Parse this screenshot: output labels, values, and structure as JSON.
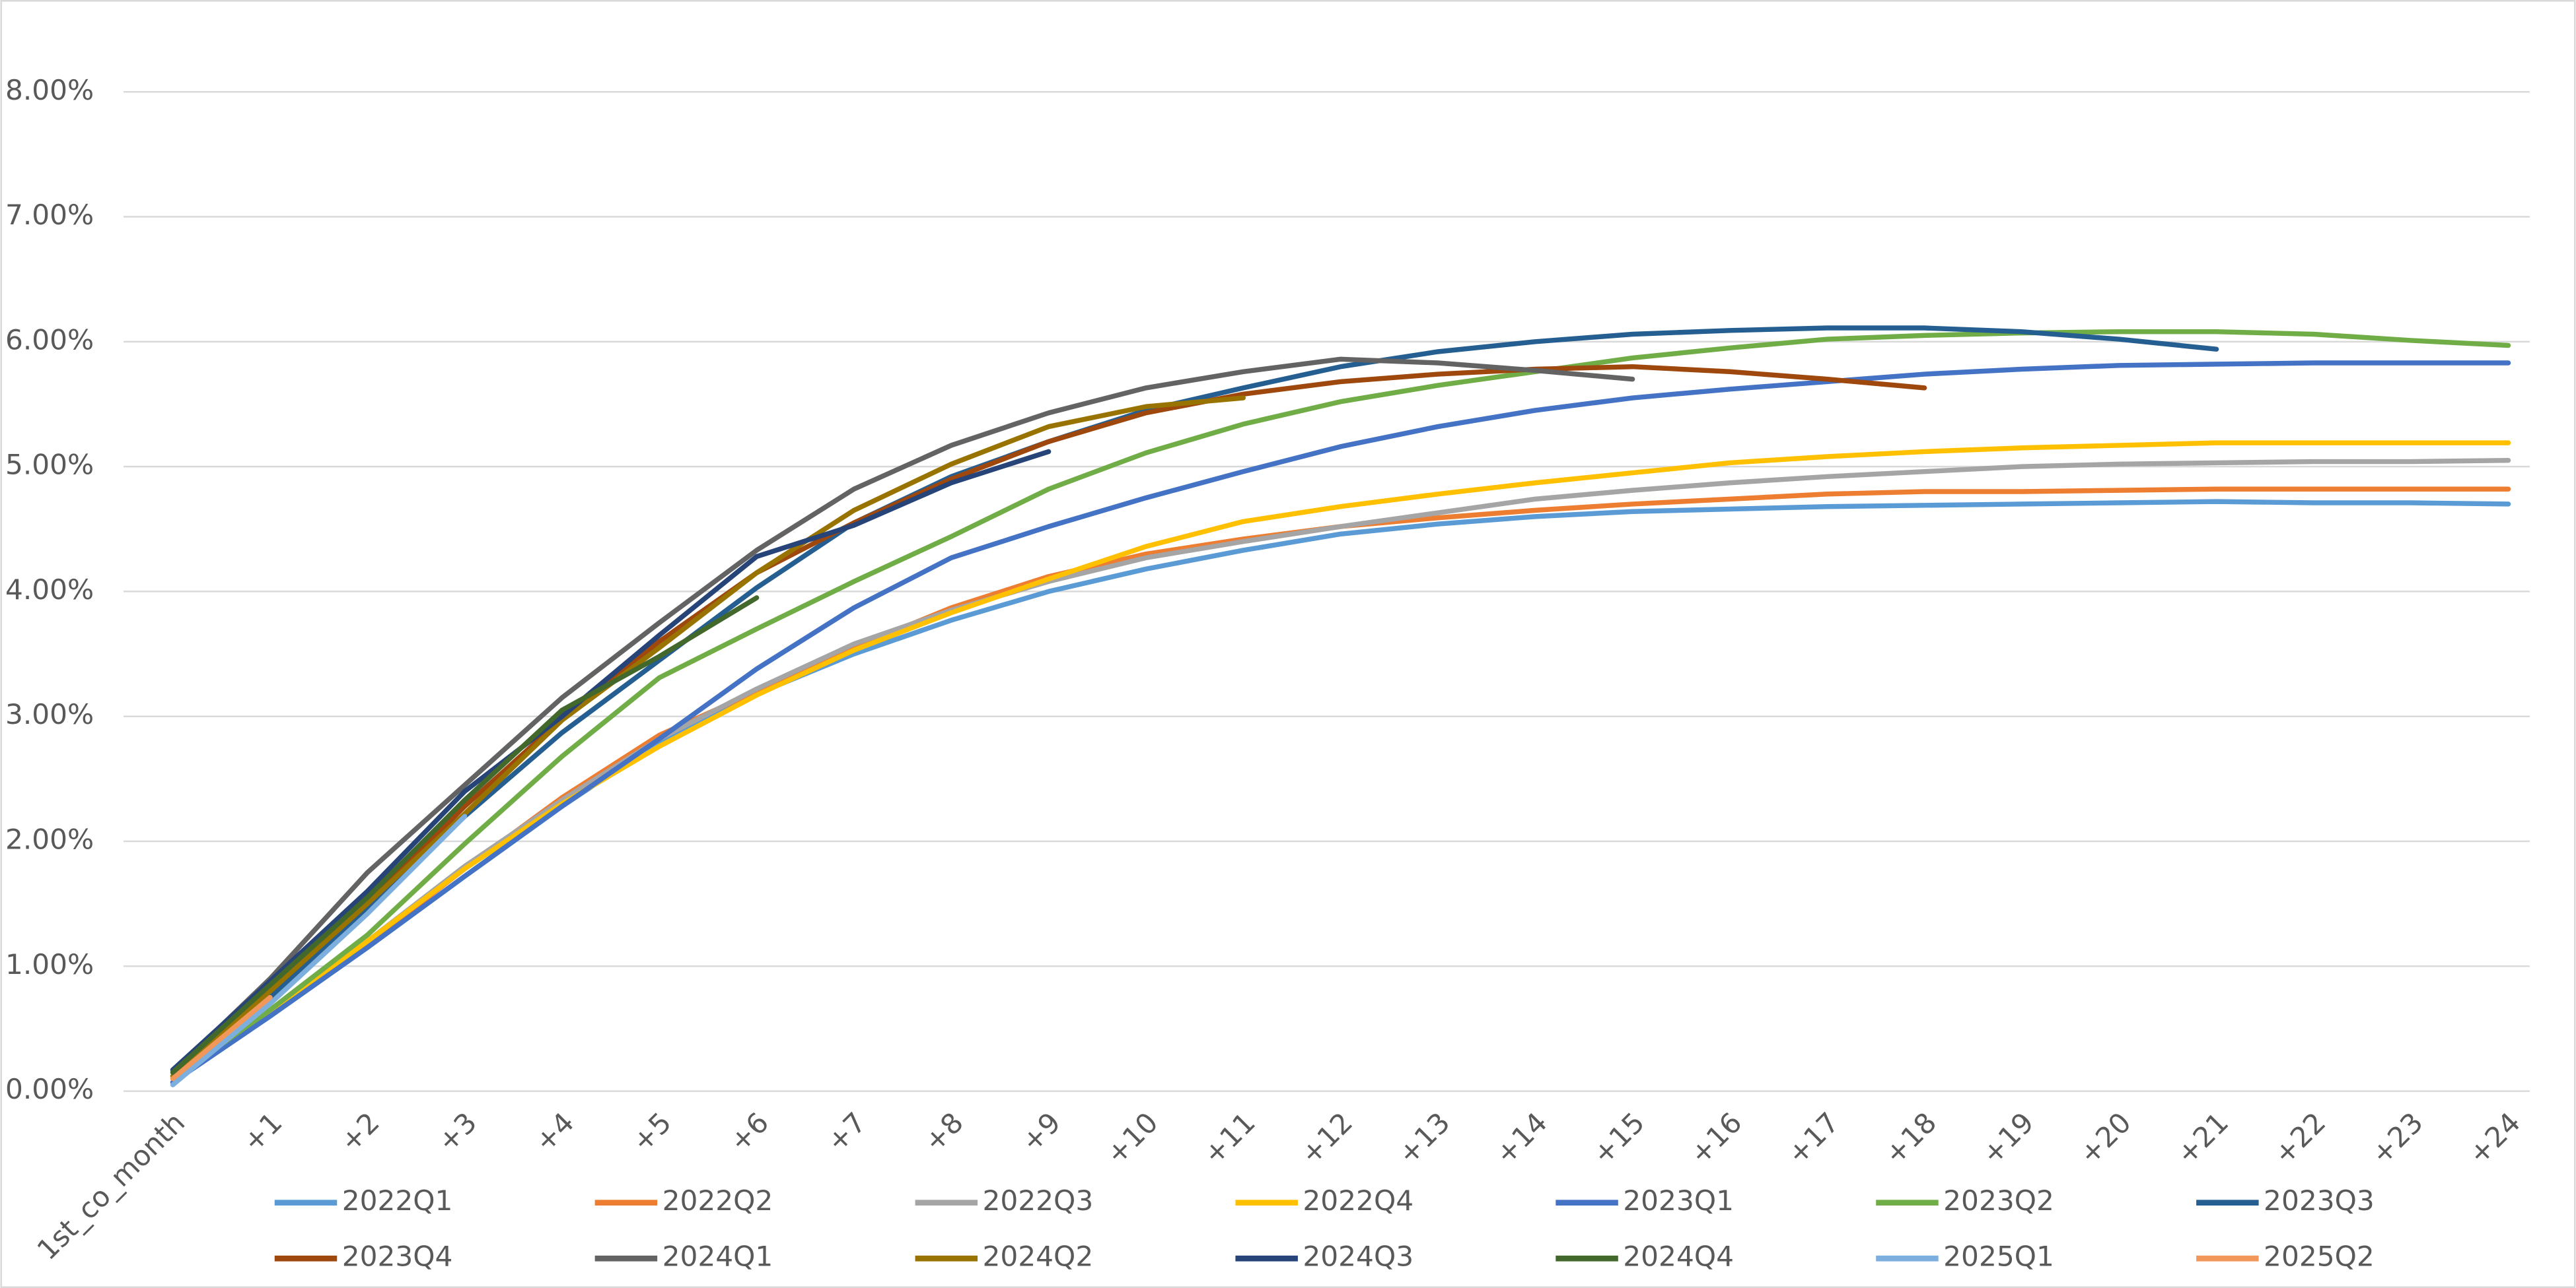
{
  "chart_data": {
    "type": "line",
    "categories": [
      "1st_co_month",
      "+1",
      "+2",
      "+3",
      "+4",
      "+5",
      "+6",
      "+7",
      "+8",
      "+9",
      "+10",
      "+11",
      "+12",
      "+13",
      "+14",
      "+15",
      "+16",
      "+17",
      "+18",
      "+19",
      "+20",
      "+21",
      "+22",
      "+23",
      "+24"
    ],
    "ylim": [
      0,
      8
    ],
    "yticks": [
      {
        "value": 0,
        "label": "0.00%"
      },
      {
        "value": 1,
        "label": "1.00%"
      },
      {
        "value": 2,
        "label": "2.00%"
      },
      {
        "value": 3,
        "label": "3.00%"
      },
      {
        "value": 4,
        "label": "4.00%"
      },
      {
        "value": 5,
        "label": "5.00%"
      },
      {
        "value": 6,
        "label": "6.00%"
      },
      {
        "value": 7,
        "label": "7.00%"
      },
      {
        "value": 8,
        "label": "8.00%"
      }
    ],
    "grid": true,
    "legend": "bottom",
    "series": [
      {
        "name": "2022Q1",
        "color": "#5B9BD5",
        "values": [
          0.07,
          0.6,
          1.15,
          1.72,
          2.28,
          2.8,
          3.18,
          3.5,
          3.77,
          4.0,
          4.18,
          4.33,
          4.46,
          4.54,
          4.6,
          4.64,
          4.66,
          4.68,
          4.69,
          4.7,
          4.71,
          4.72,
          4.71,
          4.71,
          4.7
        ]
      },
      {
        "name": "2022Q2",
        "color": "#ED7D31",
        "values": [
          0.07,
          0.62,
          1.18,
          1.78,
          2.35,
          2.85,
          3.2,
          3.55,
          3.87,
          4.12,
          4.3,
          4.42,
          4.52,
          4.59,
          4.65,
          4.7,
          4.74,
          4.78,
          4.8,
          4.8,
          4.81,
          4.82,
          4.82,
          4.82,
          4.82
        ]
      },
      {
        "name": "2022Q3",
        "color": "#A5A5A5",
        "values": [
          0.07,
          0.62,
          1.2,
          1.8,
          2.33,
          2.82,
          3.22,
          3.58,
          3.85,
          4.08,
          4.27,
          4.4,
          4.52,
          4.63,
          4.74,
          4.81,
          4.87,
          4.92,
          4.96,
          5.0,
          5.02,
          5.03,
          5.04,
          5.04,
          5.05
        ]
      },
      {
        "name": "2022Q4",
        "color": "#FFC000",
        "values": [
          0.07,
          0.62,
          1.2,
          1.78,
          2.3,
          2.76,
          3.17,
          3.53,
          3.83,
          4.1,
          4.36,
          4.56,
          4.68,
          4.78,
          4.87,
          4.95,
          5.03,
          5.08,
          5.12,
          5.15,
          5.17,
          5.19,
          5.19,
          5.19,
          5.19
        ]
      },
      {
        "name": "2023Q1",
        "color": "#4472C4",
        "values": [
          0.07,
          0.6,
          1.15,
          1.72,
          2.28,
          2.82,
          3.38,
          3.87,
          4.27,
          4.52,
          4.75,
          4.96,
          5.16,
          5.32,
          5.45,
          5.55,
          5.62,
          5.68,
          5.74,
          5.78,
          5.81,
          5.82,
          5.83,
          5.83,
          5.83
        ]
      },
      {
        "name": "2023Q2",
        "color": "#70AD47",
        "values": [
          0.1,
          0.65,
          1.25,
          1.98,
          2.68,
          3.31,
          3.7,
          4.08,
          4.44,
          4.82,
          5.11,
          5.34,
          5.52,
          5.65,
          5.76,
          5.87,
          5.95,
          6.02,
          6.05,
          6.07,
          6.08,
          6.08,
          6.06,
          6.01,
          5.97
        ]
      },
      {
        "name": "2023Q3",
        "color": "#255E91",
        "values": [
          0.12,
          0.75,
          1.45,
          2.2,
          2.87,
          3.45,
          4.03,
          4.55,
          4.92,
          5.2,
          5.45,
          5.63,
          5.8,
          5.92,
          6.0,
          6.06,
          6.09,
          6.11,
          6.11,
          6.08,
          6.02,
          5.94,
          null,
          null,
          null
        ]
      },
      {
        "name": "2023Q4",
        "color": "#9E480E",
        "values": [
          0.15,
          0.8,
          1.5,
          2.28,
          2.98,
          3.6,
          4.15,
          4.55,
          4.9,
          5.2,
          5.43,
          5.58,
          5.68,
          5.74,
          5.78,
          5.8,
          5.76,
          5.7,
          5.63,
          null,
          null,
          null,
          null,
          null,
          null
        ]
      },
      {
        "name": "2024Q1",
        "color": "#636363",
        "values": [
          0.15,
          0.9,
          1.75,
          2.45,
          3.15,
          3.75,
          4.33,
          4.82,
          5.17,
          5.43,
          5.63,
          5.76,
          5.86,
          5.83,
          5.77,
          5.7,
          null,
          null,
          null,
          null,
          null,
          null,
          null,
          null,
          null
        ]
      },
      {
        "name": "2024Q2",
        "color": "#997300",
        "values": [
          0.12,
          0.8,
          1.5,
          2.22,
          2.97,
          3.55,
          4.15,
          4.65,
          5.02,
          5.32,
          5.48,
          5.55,
          null,
          null,
          null,
          null,
          null,
          null,
          null,
          null,
          null,
          null,
          null,
          null,
          null
        ]
      },
      {
        "name": "2024Q3",
        "color": "#264478",
        "values": [
          0.17,
          0.88,
          1.6,
          2.4,
          3.0,
          3.65,
          4.28,
          4.53,
          4.87,
          5.12,
          null,
          null,
          null,
          null,
          null,
          null,
          null,
          null,
          null,
          null,
          null,
          null,
          null,
          null,
          null
        ]
      },
      {
        "name": "2024Q4",
        "color": "#43682B",
        "values": [
          0.15,
          0.85,
          1.55,
          2.33,
          3.05,
          3.48,
          3.95,
          null,
          null,
          null,
          null,
          null,
          null,
          null,
          null,
          null,
          null,
          null,
          null,
          null,
          null,
          null,
          null,
          null,
          null
        ]
      },
      {
        "name": "2025Q1",
        "color": "#7CAFDD",
        "values": [
          0.05,
          0.7,
          1.42,
          2.2,
          null,
          null,
          null,
          null,
          null,
          null,
          null,
          null,
          null,
          null,
          null,
          null,
          null,
          null,
          null,
          null,
          null,
          null,
          null,
          null,
          null
        ]
      },
      {
        "name": "2025Q2",
        "color": "#F1975A",
        "values": [
          0.1,
          0.75,
          null,
          null,
          null,
          null,
          null,
          null,
          null,
          null,
          null,
          null,
          null,
          null,
          null,
          null,
          null,
          null,
          null,
          null,
          null,
          null,
          null,
          null,
          null
        ]
      }
    ]
  }
}
